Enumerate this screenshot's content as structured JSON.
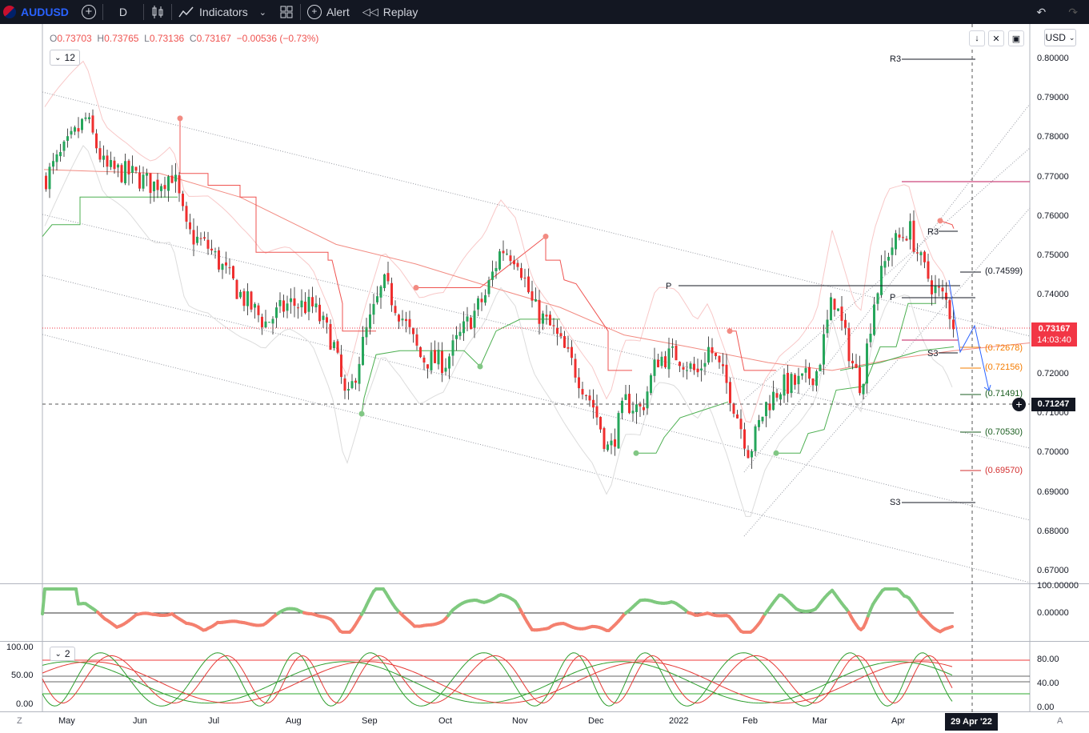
{
  "toolbar": {
    "symbol": "AUDUSD",
    "interval": "D",
    "indicators_label": "Indicators",
    "alert_label": "Alert",
    "replay_label": "Replay"
  },
  "legend": {
    "o_key": "O",
    "o_val": "0.73703",
    "h_key": "H",
    "h_val": "0.73765",
    "l_key": "L",
    "l_val": "0.73136",
    "c_key": "C",
    "c_val": "0.73167",
    "change": "−0.00536 (−0.73%)",
    "indicator_count": "12"
  },
  "currency_button": "USD",
  "price_axis": {
    "ticks": [
      "0.80000",
      "0.79000",
      "0.78000",
      "0.77000",
      "0.76000",
      "0.75000",
      "0.74000",
      "0.73000",
      "0.72000",
      "0.71000",
      "0.70000",
      "0.69000",
      "0.68000",
      "0.67000"
    ],
    "last_price": "0.73167",
    "countdown": "14:03:40",
    "crosshair_price": "0.71247"
  },
  "levels": {
    "r3_upper": "R3",
    "r3_lower": "R3",
    "p_long": "P",
    "p_short": "P",
    "s3_upper": "S3",
    "s3_lower": "S3",
    "target1": "(0.74599)",
    "target2": "(0.72678)",
    "target3": "(0.72156)",
    "target4": "(0.71491)",
    "target5": "(0.70530)",
    "target6": "(0.69570)"
  },
  "osc1_axis": [
    "100.00000",
    "0.00000"
  ],
  "osc2": {
    "left_ticks": [
      "100.00",
      "50.00",
      "0.00"
    ],
    "right_ticks": [
      "80.00",
      "40.00",
      "0.00"
    ],
    "indicator_count": "2"
  },
  "time_axis": {
    "labels": [
      "May",
      "Jun",
      "Jul",
      "Aug",
      "Sep",
      "Oct",
      "Nov",
      "Dec",
      "2022",
      "Feb",
      "Mar",
      "Apr"
    ],
    "crosshair_date": "29 Apr '22",
    "left_button": "Z",
    "right_button": "A"
  },
  "colors": {
    "up": "#26a65b",
    "down": "#ef2f2f",
    "toolbar_bg": "#131722",
    "last_price_bg": "#f23645"
  }
}
